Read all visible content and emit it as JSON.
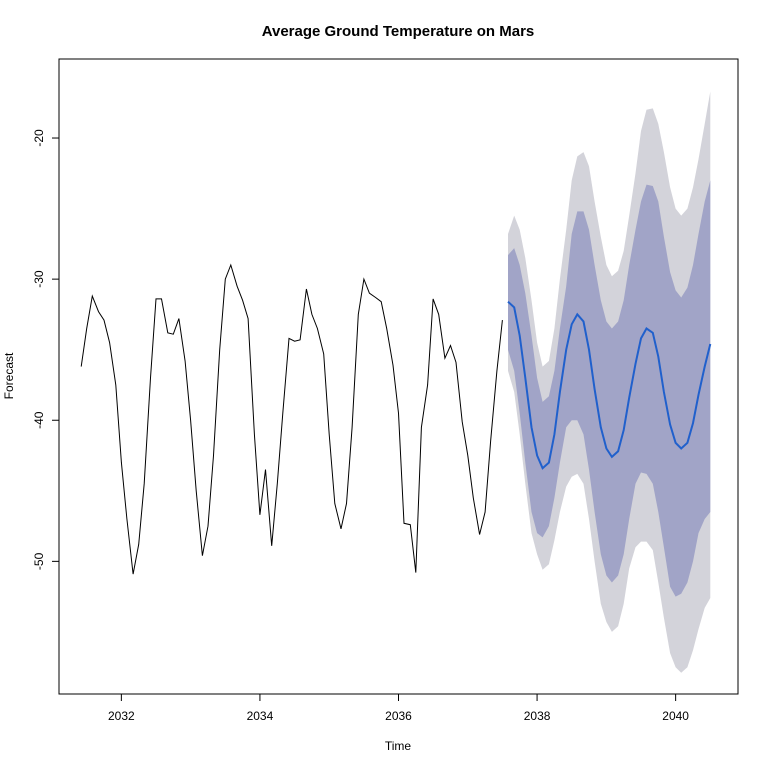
{
  "chart_data": {
    "type": "line",
    "title": "Average Ground Temperature on Mars",
    "xlabel": "Time",
    "ylabel": "Forecast",
    "xlim": [
      2031.1,
      2040.9
    ],
    "ylim": [
      -59.4,
      -14.4
    ],
    "x_ticks": [
      2032,
      2034,
      2036,
      2038,
      2040
    ],
    "y_ticks": [
      -50,
      -40,
      -30,
      -20
    ],
    "grid": false,
    "colors": {
      "history": "#000000",
      "forecast": "#2060cc",
      "band_95": "#d3d3da",
      "band_80": "#a1a4c7"
    },
    "history": {
      "name": "",
      "x": [
        2031.42,
        2031.5,
        2031.58,
        2031.67,
        2031.75,
        2031.83,
        2031.92,
        2032.0,
        2032.08,
        2032.17,
        2032.25,
        2032.33,
        2032.42,
        2032.5,
        2032.58,
        2032.67,
        2032.75,
        2032.83,
        2032.92,
        2033.0,
        2033.08,
        2033.17,
        2033.25,
        2033.33,
        2033.42,
        2033.5,
        2033.58,
        2033.67,
        2033.75,
        2033.83,
        2033.92,
        2034.0,
        2034.08,
        2034.17,
        2034.25,
        2034.33,
        2034.42,
        2034.5,
        2034.58,
        2034.67,
        2034.75,
        2034.83,
        2034.92,
        2035.0,
        2035.08,
        2035.17,
        2035.25,
        2035.33,
        2035.42,
        2035.5,
        2035.58,
        2035.67,
        2035.75,
        2035.83,
        2035.92,
        2036.0,
        2036.08,
        2036.17,
        2036.25,
        2036.33,
        2036.42,
        2036.5,
        2036.58,
        2036.67,
        2036.75,
        2036.83,
        2036.92,
        2037.0,
        2037.08,
        2037.17,
        2037.25,
        2037.33,
        2037.42,
        2037.5
      ],
      "y": [
        -36.2,
        -33.5,
        -31.2,
        -32.3,
        -32.9,
        -34.5,
        -37.5,
        -43.0,
        -47.0,
        -50.9,
        -48.8,
        -44.5,
        -37.0,
        -31.4,
        -31.4,
        -33.8,
        -33.9,
        -32.8,
        -35.8,
        -40.0,
        -45.0,
        -49.6,
        -47.5,
        -42.5,
        -35.0,
        -30.0,
        -29.0,
        -30.5,
        -31.5,
        -32.8,
        -41.0,
        -46.7,
        -43.5,
        -48.9,
        -44.5,
        -39.5,
        -34.2,
        -34.4,
        -34.3,
        -30.7,
        -32.5,
        -33.5,
        -35.3,
        -41.0,
        -45.9,
        -47.7,
        -45.9,
        -40.5,
        -32.5,
        -30.0,
        -31.0,
        -31.3,
        -31.6,
        -33.5,
        -36.1,
        -39.5,
        -47.3,
        -47.4,
        -50.8,
        -40.5,
        -37.5,
        -31.4,
        -32.5,
        -35.6,
        -34.7,
        -35.9,
        -40.1,
        -42.5,
        -45.5,
        -48.1,
        -46.5,
        -41.5,
        -36.5,
        -32.9
      ]
    },
    "forecast": {
      "name": "",
      "x": [
        2037.58,
        2037.67,
        2037.75,
        2037.83,
        2037.92,
        2038.0,
        2038.08,
        2038.17,
        2038.25,
        2038.33,
        2038.42,
        2038.5,
        2038.58,
        2038.67,
        2038.75,
        2038.83,
        2038.92,
        2039.0,
        2039.08,
        2039.17,
        2039.25,
        2039.33,
        2039.42,
        2039.5,
        2039.58,
        2039.67,
        2039.75,
        2039.83,
        2039.92,
        2040.0,
        2040.08,
        2040.17,
        2040.25,
        2040.33,
        2040.42,
        2040.5
      ],
      "mean": [
        -31.6,
        -32.0,
        -34.0,
        -37.0,
        -40.5,
        -42.5,
        -43.4,
        -43.0,
        -41.0,
        -38.0,
        -35.0,
        -33.2,
        -32.5,
        -33.0,
        -35.0,
        -37.8,
        -40.5,
        -42.0,
        -42.6,
        -42.2,
        -40.7,
        -38.4,
        -36.0,
        -34.2,
        -33.5,
        -33.8,
        -35.5,
        -38.0,
        -40.3,
        -41.6,
        -42.0,
        -41.6,
        -40.2,
        -38.2,
        -36.2,
        -34.6
      ],
      "lo80": [
        -35.0,
        -36.5,
        -39.5,
        -43.0,
        -46.5,
        -48.0,
        -48.3,
        -47.5,
        -45.5,
        -43.0,
        -40.5,
        -40.0,
        -40.0,
        -41.0,
        -43.5,
        -46.5,
        -49.5,
        -51.0,
        -51.5,
        -51.0,
        -49.5,
        -47.0,
        -44.5,
        -43.7,
        -43.8,
        -44.5,
        -46.5,
        -49.0,
        -51.8,
        -52.5,
        -52.3,
        -51.5,
        -50.0,
        -48.0,
        -47.0,
        -46.5
      ],
      "hi80": [
        -28.3,
        -27.8,
        -29.0,
        -31.0,
        -34.0,
        -37.0,
        -38.7,
        -38.3,
        -36.5,
        -33.5,
        -30.5,
        -26.8,
        -25.2,
        -25.2,
        -26.5,
        -29.0,
        -31.5,
        -33.0,
        -33.5,
        -33.0,
        -31.5,
        -29.0,
        -26.5,
        -24.5,
        -23.3,
        -23.4,
        -24.5,
        -27.0,
        -29.5,
        -30.8,
        -31.3,
        -30.6,
        -29.0,
        -26.8,
        -24.5,
        -23.0
      ],
      "lo95": [
        -36.5,
        -38.0,
        -41.0,
        -44.5,
        -48.0,
        -49.5,
        -50.6,
        -50.2,
        -48.5,
        -46.5,
        -44.7,
        -44.0,
        -43.8,
        -44.5,
        -47.0,
        -50.0,
        -53.0,
        -54.3,
        -55.0,
        -54.6,
        -53.0,
        -50.5,
        -49.0,
        -48.6,
        -48.6,
        -49.2,
        -51.5,
        -54.0,
        -56.5,
        -57.5,
        -57.9,
        -57.5,
        -56.3,
        -54.8,
        -53.3,
        -52.6
      ],
      "hi95": [
        -26.8,
        -25.5,
        -26.5,
        -28.5,
        -31.5,
        -34.5,
        -36.2,
        -35.8,
        -33.5,
        -30.0,
        -26.5,
        -23.0,
        -21.3,
        -21.0,
        -22.0,
        -24.5,
        -27.0,
        -29.0,
        -29.8,
        -29.4,
        -28.0,
        -25.5,
        -22.5,
        -19.5,
        -18.0,
        -17.9,
        -19.0,
        -21.0,
        -23.5,
        -25.0,
        -25.5,
        -25.0,
        -23.5,
        -21.5,
        -19.0,
        -16.7
      ]
    }
  }
}
